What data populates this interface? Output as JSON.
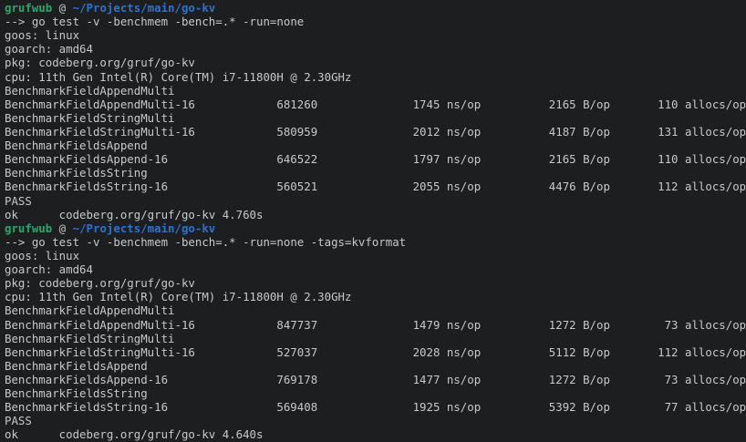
{
  "terminal": {
    "colors": {
      "background": "#1d1e20",
      "foreground": "#c8c8c8",
      "prompt_user_green": "#2aa869",
      "prompt_path_blue": "#2e72cc"
    },
    "prompt": {
      "user": "grufwub",
      "at": "@",
      "path": "~/Projects/main/go-kv",
      "arrow": "-->"
    },
    "units": {
      "ns": "ns/op",
      "bytes": "B/op",
      "allocs": "allocs/op"
    },
    "sessions": [
      {
        "command": "go test -v -benchmem -bench=.* -run=none",
        "env": [
          "goos: linux",
          "goarch: amd64",
          "pkg: codeberg.org/gruf/go-kv",
          "cpu: 11th Gen Intel(R) Core(TM) i7-11800H @ 2.30GHz"
        ],
        "benchmarks": [
          {
            "name": "BenchmarkFieldAppendMulti",
            "run": "BenchmarkFieldAppendMulti-16",
            "iterations": 681260,
            "ns_per_op": 1745,
            "bytes_per_op": 2165,
            "allocs_per_op": 110
          },
          {
            "name": "BenchmarkFieldStringMulti",
            "run": "BenchmarkFieldStringMulti-16",
            "iterations": 580959,
            "ns_per_op": 2012,
            "bytes_per_op": 4187,
            "allocs_per_op": 131
          },
          {
            "name": "BenchmarkFieldsAppend",
            "run": "BenchmarkFieldsAppend-16",
            "iterations": 646522,
            "ns_per_op": 1797,
            "bytes_per_op": 2165,
            "allocs_per_op": 110
          },
          {
            "name": "BenchmarkFieldsString",
            "run": "BenchmarkFieldsString-16",
            "iterations": 560521,
            "ns_per_op": 2055,
            "bytes_per_op": 4476,
            "allocs_per_op": 112
          }
        ],
        "pass": "PASS",
        "ok": {
          "label": "ok",
          "package": "codeberg.org/gruf/go-kv",
          "duration": "4.760s"
        }
      },
      {
        "command": "go test -v -benchmem -bench=.* -run=none -tags=kvformat",
        "env": [
          "goos: linux",
          "goarch: amd64",
          "pkg: codeberg.org/gruf/go-kv",
          "cpu: 11th Gen Intel(R) Core(TM) i7-11800H @ 2.30GHz"
        ],
        "benchmarks": [
          {
            "name": "BenchmarkFieldAppendMulti",
            "run": "BenchmarkFieldAppendMulti-16",
            "iterations": 847737,
            "ns_per_op": 1479,
            "bytes_per_op": 1272,
            "allocs_per_op": 73
          },
          {
            "name": "BenchmarkFieldStringMulti",
            "run": "BenchmarkFieldStringMulti-16",
            "iterations": 527037,
            "ns_per_op": 2028,
            "bytes_per_op": 5112,
            "allocs_per_op": 112
          },
          {
            "name": "BenchmarkFieldsAppend",
            "run": "BenchmarkFieldsAppend-16",
            "iterations": 769178,
            "ns_per_op": 1477,
            "bytes_per_op": 1272,
            "allocs_per_op": 73
          },
          {
            "name": "BenchmarkFieldsString",
            "run": "BenchmarkFieldsString-16",
            "iterations": 569408,
            "ns_per_op": 1925,
            "bytes_per_op": 5392,
            "allocs_per_op": 77
          }
        ],
        "pass": "PASS",
        "ok": {
          "label": "ok",
          "package": "codeberg.org/gruf/go-kv",
          "duration": "4.640s"
        }
      }
    ]
  }
}
